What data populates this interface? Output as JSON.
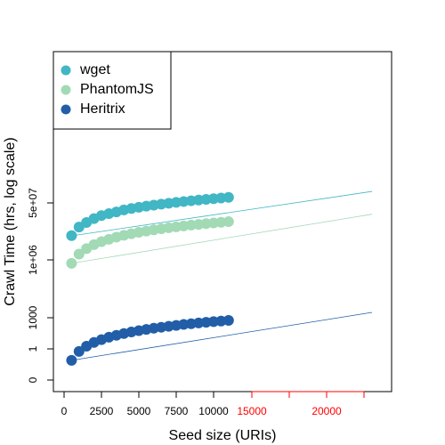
{
  "chart_data": {
    "type": "scatter",
    "xlabel": "Seed size (URIs)",
    "ylabel": "Crawl Time (hrs, log scale)",
    "xlim": [
      -714,
      21905
    ],
    "xticks": [
      0,
      2500,
      5000,
      7500,
      10000
    ],
    "x2lim": [
      1726,
      24345
    ],
    "x2ticks": [
      15000,
      20000
    ],
    "x2ticks_minor": [
      17500,
      22500
    ],
    "x2color": "#ff0000",
    "ylim": [
      -0.227,
      1600000000000
    ],
    "yscale": "log",
    "yticks": [
      0,
      1,
      1000,
      {
        "value": 1000000,
        "label": "1e+06"
      },
      {
        "value": 50000000,
        "label": "5e+07"
      }
    ],
    "legend": "upper left",
    "x": [
      500,
      1000,
      1500,
      2000,
      2500,
      3000,
      3500,
      4000,
      4500,
      5000,
      5500,
      6000,
      6500,
      7000,
      7500,
      8000,
      8500,
      9000,
      9500,
      10000,
      10500,
      11000
    ],
    "fit_x": [
      500,
      20600
    ],
    "series": [
      {
        "name": "wget",
        "color": "#41b6c4",
        "values": [
          5300000,
          9500000,
          13000000,
          17000000,
          21000000,
          24000000,
          27000000,
          31000000,
          34000000,
          37000000,
          40000000,
          43000000,
          46000000,
          49000000,
          52000000,
          55000000,
          58000000,
          61000000,
          64000000,
          67000000,
          70000000,
          73000000
        ],
        "fit": [
          5200000,
          110000000
        ]
      },
      {
        "name": "PhantomJS",
        "color": "#a1dab4",
        "values": [
          660000,
          1490000,
          2170000,
          2840000,
          3500000,
          4120000,
          4770000,
          5400000,
          6030000,
          6640000,
          7230000,
          7880000,
          8470000,
          9070000,
          9700000,
          10300000,
          10900000,
          11400000,
          12100000,
          12600000,
          13200000,
          13800000
        ],
        "fit": [
          660000,
          23000000
        ]
      },
      {
        "name": "Heritrix",
        "color": "#225ea8",
        "values": [
          0.55,
          0.89,
          2.4,
          6.2,
          11.7,
          19.5,
          29.3,
          42,
          57,
          75,
          97,
          122,
          149,
          181,
          216,
          263,
          303,
          350,
          403,
          456,
          517,
          585
        ],
        "fit": [
          0.55,
          1900
        ]
      }
    ]
  }
}
